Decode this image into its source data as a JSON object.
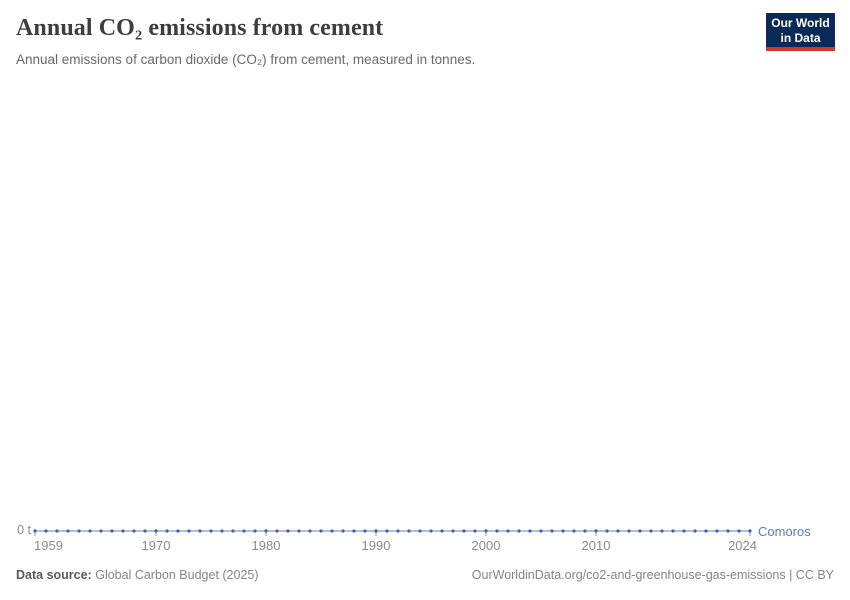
{
  "header": {
    "title": "Annual CO₂ emissions from cement",
    "subtitle": "Annual emissions of carbon dioxide (CO₂) from cement, measured in tonnes.",
    "logo": {
      "line1": "Our World",
      "line2": "in Data"
    }
  },
  "chart_data": {
    "type": "line",
    "title": "Annual CO₂ emissions from cement",
    "unit": "tonnes",
    "x": [
      1959,
      1960,
      1961,
      1962,
      1963,
      1964,
      1965,
      1966,
      1967,
      1968,
      1969,
      1970,
      1971,
      1972,
      1973,
      1974,
      1975,
      1976,
      1977,
      1978,
      1979,
      1980,
      1981,
      1982,
      1983,
      1984,
      1985,
      1986,
      1987,
      1988,
      1989,
      1990,
      1991,
      1992,
      1993,
      1994,
      1995,
      1996,
      1997,
      1998,
      1999,
      2000,
      2001,
      2002,
      2003,
      2004,
      2005,
      2006,
      2007,
      2008,
      2009,
      2010,
      2011,
      2012,
      2013,
      2014,
      2015,
      2016,
      2017,
      2018,
      2019,
      2020,
      2021,
      2022,
      2023,
      2024
    ],
    "series": [
      {
        "name": "Comoros",
        "values": [
          0,
          0,
          0,
          0,
          0,
          0,
          0,
          0,
          0,
          0,
          0,
          0,
          0,
          0,
          0,
          0,
          0,
          0,
          0,
          0,
          0,
          0,
          0,
          0,
          0,
          0,
          0,
          0,
          0,
          0,
          0,
          0,
          0,
          0,
          0,
          0,
          0,
          0,
          0,
          0,
          0,
          0,
          0,
          0,
          0,
          0,
          0,
          0,
          0,
          0,
          0,
          0,
          0,
          0,
          0,
          0,
          0,
          0,
          0,
          0,
          0,
          0,
          0,
          0,
          0,
          0
        ]
      }
    ],
    "xlim": [
      1959,
      2024
    ],
    "ylim": [
      0,
      1
    ],
    "grid": false,
    "legend": "end-of-line-label",
    "ytick_label": "0 t",
    "xtick_years": [
      1959,
      1970,
      1980,
      1990,
      2000,
      2010,
      2024
    ],
    "colors": {
      "line": "#7f9bc7",
      "marker": "#3c63ac",
      "tick": "#93a7c9",
      "axis_text": "#8a8a8a",
      "entity_label": "#5b7cbe"
    }
  },
  "footer": {
    "source_label": "Data source:",
    "source_value": "Global Carbon Budget (2025)",
    "link": "OurWorldinData.org/co2-and-greenhouse-gas-emissions | CC BY"
  }
}
